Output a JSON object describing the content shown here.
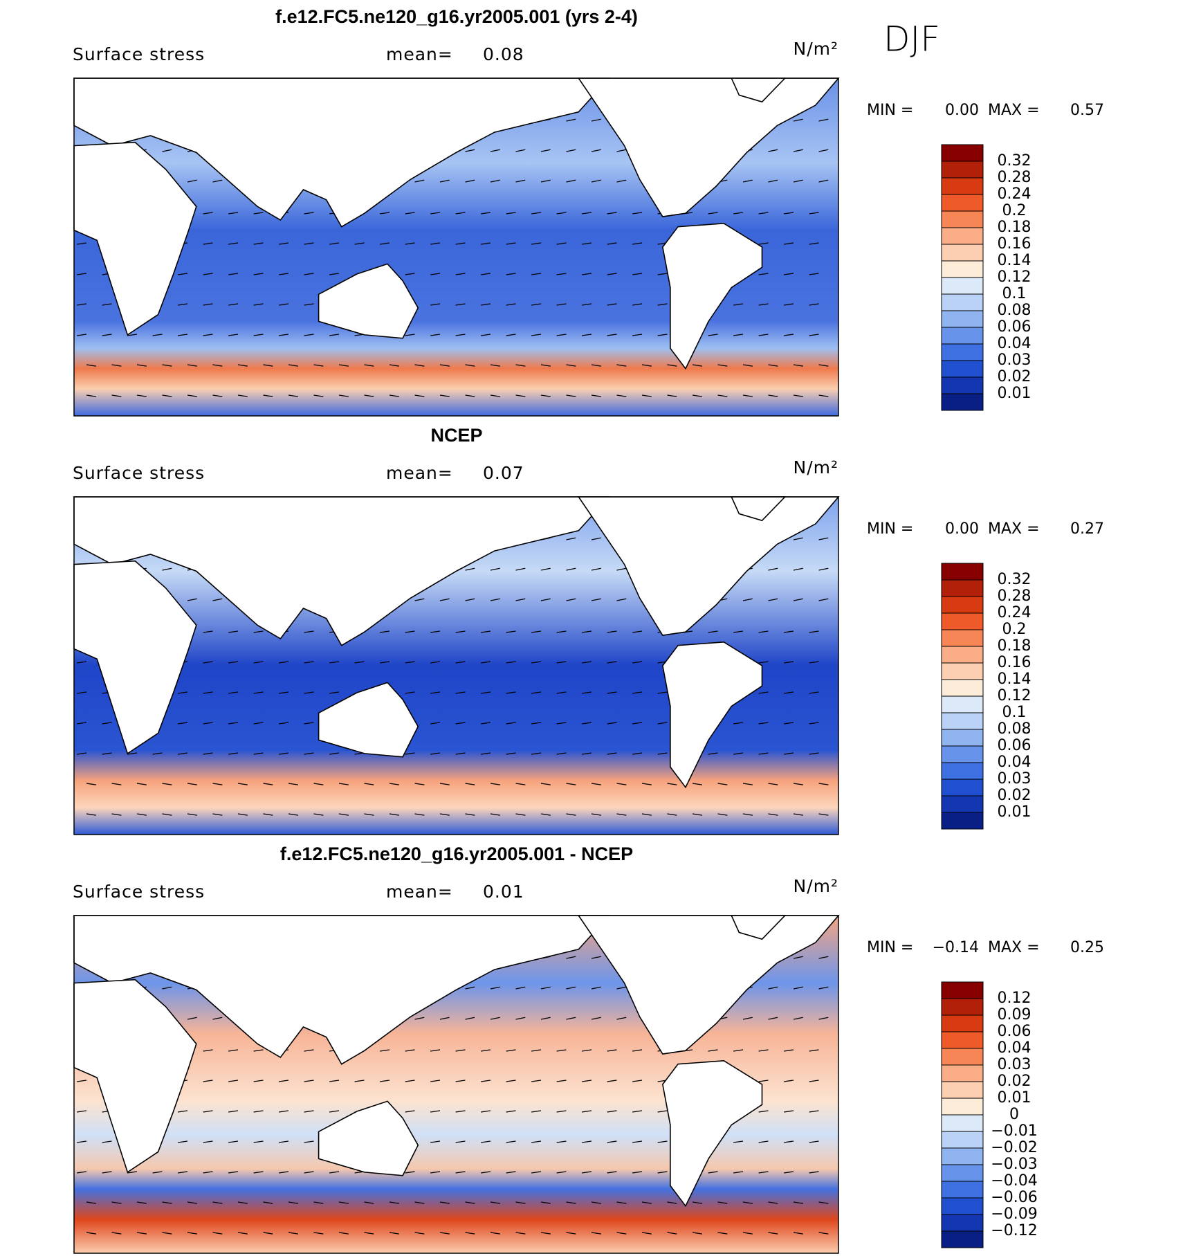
{
  "season": "DJF",
  "panels": [
    {
      "title": "f.e12.FC5.ne120_g16.yr2005.001 (yrs 2-4)",
      "variable": "Surface stress",
      "mean_label": "mean=",
      "mean": "0.08",
      "units": "N/m²",
      "min_label": "MIN =",
      "min": "0.00",
      "max_label": "MAX =",
      "max": "0.57",
      "colorbar": {
        "labels": [
          "0.32",
          "0.28",
          "0.24",
          "0.2",
          "0.18",
          "0.16",
          "0.14",
          "0.12",
          "0.1",
          "0.08",
          "0.06",
          "0.04",
          "0.03",
          "0.02",
          "0.01"
        ],
        "colors": [
          "#860000",
          "#b3200a",
          "#d83a12",
          "#ef5a2a",
          "#f78656",
          "#fbad88",
          "#fdcfb2",
          "#fdecd8",
          "#dbe9f9",
          "#b9d2f5",
          "#8fb4f0",
          "#6793eb",
          "#3f70e2",
          "#2050d0",
          "#1436b0",
          "#0a1f86"
        ]
      }
    },
    {
      "title": "NCEP",
      "variable": "Surface stress",
      "mean_label": "mean=",
      "mean": "0.07",
      "units": "N/m²",
      "min_label": "MIN =",
      "min": "0.00",
      "max_label": "MAX =",
      "max": "0.27",
      "colorbar": {
        "labels": [
          "0.32",
          "0.28",
          "0.24",
          "0.2",
          "0.18",
          "0.16",
          "0.14",
          "0.12",
          "0.1",
          "0.08",
          "0.06",
          "0.04",
          "0.03",
          "0.02",
          "0.01"
        ],
        "colors": [
          "#860000",
          "#b3200a",
          "#d83a12",
          "#ef5a2a",
          "#f78656",
          "#fbad88",
          "#fdcfb2",
          "#fdecd8",
          "#dbe9f9",
          "#b9d2f5",
          "#8fb4f0",
          "#6793eb",
          "#3f70e2",
          "#2050d0",
          "#1436b0",
          "#0a1f86"
        ]
      }
    },
    {
      "title": "f.e12.FC5.ne120_g16.yr2005.001 - NCEP",
      "variable": "Surface stress",
      "mean_label": "mean=",
      "mean": "0.01",
      "units": "N/m²",
      "min_label": "MIN =",
      "min": "−0.14",
      "max_label": "MAX =",
      "max": "0.25",
      "colorbar": {
        "labels": [
          "0.12",
          "0.09",
          "0.06",
          "0.04",
          "0.03",
          "0.02",
          "0.01",
          "0",
          "−0.01",
          "−0.02",
          "−0.03",
          "−0.04",
          "−0.06",
          "−0.09",
          "−0.12"
        ],
        "colors": [
          "#860000",
          "#b3200a",
          "#d83a12",
          "#ef5a2a",
          "#f78656",
          "#fbad88",
          "#fdcfb2",
          "#fdecd8",
          "#dbe9f9",
          "#b9d2f5",
          "#8fb4f0",
          "#6793eb",
          "#3f70e2",
          "#2050d0",
          "#1436b0",
          "#0a1f86"
        ]
      }
    }
  ]
}
